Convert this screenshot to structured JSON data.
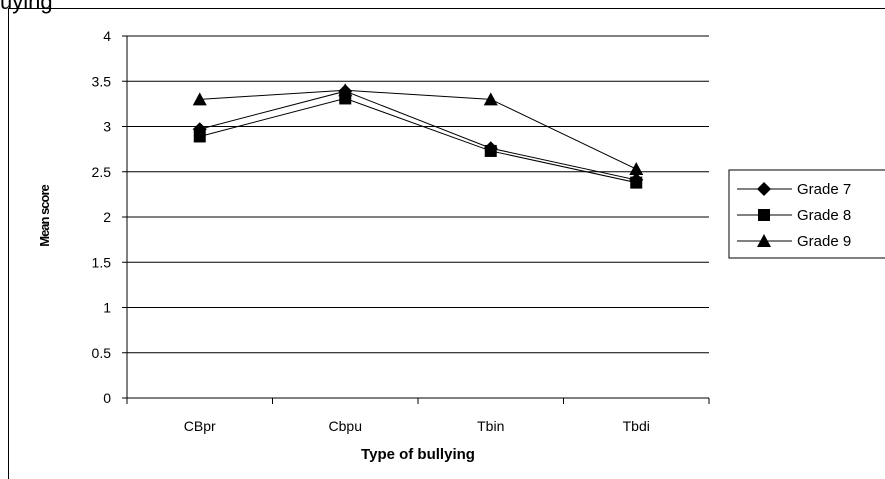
{
  "caption": "uylng",
  "chart_data": {
    "type": "line",
    "title": "",
    "xlabel": "Type of bullying",
    "ylabel": "Mean score",
    "categories": [
      "CBpr",
      "Cbpu",
      "Tbin",
      "Tbdi"
    ],
    "ylim": [
      0,
      4
    ],
    "yticks": [
      "0",
      "0.5",
      "1",
      "1.5",
      "2",
      "2.5",
      "3",
      "3.5",
      "4"
    ],
    "grid": true,
    "legend_position": "right",
    "series": [
      {
        "name": "Grade 7",
        "marker": "diamond",
        "values": [
          2.97,
          3.39,
          2.76,
          2.41
        ]
      },
      {
        "name": "Grade 8",
        "marker": "square",
        "values": [
          2.89,
          3.31,
          2.73,
          2.38
        ]
      },
      {
        "name": "Grade 9",
        "marker": "triangle",
        "values": [
          3.3,
          3.4,
          3.3,
          2.53
        ]
      }
    ],
    "line_color": "#000000",
    "grid_color": "#000000"
  }
}
